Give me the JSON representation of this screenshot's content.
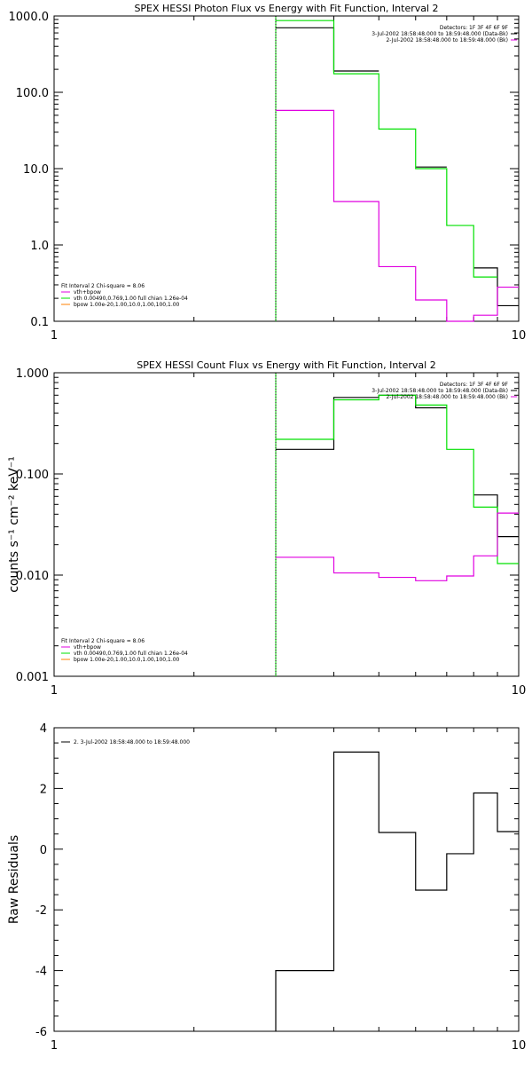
{
  "colors": {
    "data": "#000000",
    "total": "#00e000",
    "vth": "#e000e0",
    "bpow": "#ff8000",
    "frame": "#000000"
  },
  "chart_data": [
    {
      "type": "line",
      "title": "SPEX HESSI Photon Flux vs Energy with Fit Function, Interval 2",
      "xlabel": "",
      "ylabel": "",
      "xscale": "log",
      "yscale": "log",
      "xlim": [
        1,
        10
      ],
      "ylim": [
        0.1,
        1000
      ],
      "xticks": [
        "1",
        "10"
      ],
      "yticks": [
        "0.1",
        "1.0",
        "10.0",
        "100.0",
        "1000.0"
      ],
      "fit_start": 3,
      "legend": {
        "right": [
          "Detectors: 1F 3F 4F 6F 9F",
          "3-Jul-2002 18:58:48.000 to 18:59:48.000 (Data-Bk)",
          "2-Jul-2002 18:58:48.000 to 18:59:48.000 (Bk)"
        ],
        "left_title": "Fit Interval  2   Chi-square = 8.06",
        "left": [
          "vth+bpow",
          "vth 0.00490,0.769,1.00  full chian 1.26e-04",
          "bpow 1.00e-20,1.00,10.0,1.00,100,1.00"
        ]
      },
      "bin_edges": [
        3,
        4,
        5,
        6,
        7,
        8,
        9,
        10
      ],
      "series": [
        {
          "style": "data",
          "values": [
            700,
            190,
            null,
            10.5,
            null,
            0.5,
            0.16
          ]
        },
        {
          "style": "total",
          "values": [
            870,
            175,
            33,
            10,
            1.8,
            0.38,
            null
          ]
        },
        {
          "style": "vth",
          "values": [
            58,
            3.7,
            0.52,
            0.19,
            0.095,
            0.12,
            0.28
          ]
        }
      ]
    },
    {
      "type": "line",
      "title": "SPEX HESSI Count Flux vs Energy with Fit Function, Interval 2",
      "xlabel": "",
      "ylabel": "counts s⁻¹ cm⁻² keV⁻¹",
      "xscale": "log",
      "yscale": "log",
      "xlim": [
        1,
        10
      ],
      "ylim": [
        0.001,
        1
      ],
      "xticks": [
        "1",
        "10"
      ],
      "yticks": [
        "0.001",
        "0.010",
        "0.100",
        "1.000"
      ],
      "fit_start": 3,
      "legend": {
        "right": [
          "Detectors: 1F 3F 4F 6F 9F",
          "3-Jul-2002 18:58:48.000 to 18:59:48.000 (Data-Bk)",
          "2-Jul-2002 18:58:48.000 to 18:59:48.000 (Bk)"
        ],
        "left_title": "Fit Interval  2   Chi-square = 8.06",
        "left": [
          "vth+bpow",
          "vth 0.00490,0.769,1.00  full chian 1.26e-04",
          "bpow 1.00e-20,1.00,10.0,1.00,100,1.00"
        ]
      },
      "bin_edges": [
        3,
        4,
        5,
        6,
        7,
        8,
        9,
        10
      ],
      "series": [
        {
          "style": "data",
          "values": [
            0.175,
            0.57,
            0.6,
            0.45,
            null,
            0.062,
            0.024
          ]
        },
        {
          "style": "total",
          "values": [
            0.22,
            0.54,
            0.6,
            0.48,
            0.175,
            0.047,
            0.013
          ]
        },
        {
          "style": "vth",
          "values": [
            0.015,
            0.0105,
            0.0095,
            0.0088,
            0.0098,
            0.0155,
            0.041
          ]
        }
      ]
    },
    {
      "type": "line",
      "title": "",
      "xlabel": "",
      "ylabel": "Raw Residuals",
      "xscale": "log",
      "yscale": "linear",
      "xlim": [
        1,
        10
      ],
      "ylim": [
        -6,
        4
      ],
      "xticks": [
        "1",
        "10"
      ],
      "yticks": [
        "-6",
        "-4",
        "-2",
        "0",
        "2",
        "4"
      ],
      "legend": {
        "right": [],
        "left": [
          "2.  3-Jul-2002 18:58:48.000 to 18:59:48.000"
        ]
      },
      "bin_edges": [
        3,
        4,
        5,
        6,
        7,
        8,
        9,
        10
      ],
      "series": [
        {
          "style": "data",
          "values": [
            -4.0,
            3.2,
            0.55,
            -1.35,
            -0.15,
            1.85,
            0.58
          ]
        }
      ]
    }
  ]
}
